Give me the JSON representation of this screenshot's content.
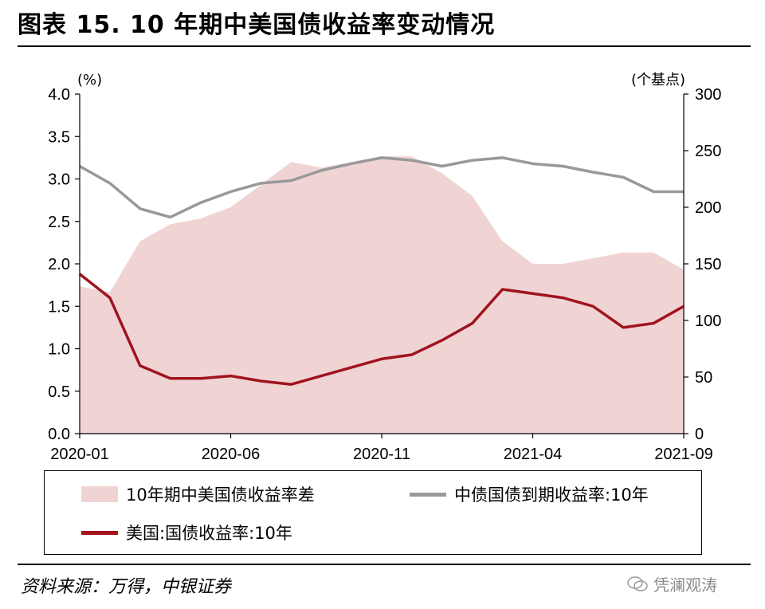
{
  "header": {
    "title": "图表 15. 10 年期中美国债收益率变动情况"
  },
  "footer": {
    "source": "资料来源：万得，中银证券",
    "watermark": "凭澜观涛"
  },
  "chart_data": {
    "type": "line",
    "left_axis": {
      "unit_label": "(%)",
      "range": [
        0,
        4.0
      ],
      "ticks": [
        "0.0",
        "0.5",
        "1.0",
        "1.5",
        "2.0",
        "2.5",
        "3.0",
        "3.5",
        "4.0"
      ]
    },
    "right_axis": {
      "unit_label": "(个基点)",
      "range": [
        0,
        300
      ],
      "ticks": [
        "0",
        "50",
        "100",
        "150",
        "200",
        "250",
        "300"
      ]
    },
    "x_ticks": [
      "2020-01",
      "2020-06",
      "2020-11",
      "2021-04",
      "2021-09"
    ],
    "x_dates": [
      "2020-01",
      "2020-02",
      "2020-03",
      "2020-04",
      "2020-05",
      "2020-06",
      "2020-07",
      "2020-08",
      "2020-09",
      "2020-10",
      "2020-11",
      "2020-12",
      "2021-01",
      "2021-02",
      "2021-03",
      "2021-04",
      "2021-05",
      "2021-06",
      "2021-07",
      "2021-08",
      "2021-09"
    ],
    "series": [
      {
        "name": "10年期中美国债收益率差",
        "axis": "right",
        "type": "area",
        "color": "#f0d4d4",
        "values": [
          130,
          125,
          170,
          185,
          190,
          200,
          220,
          240,
          235,
          240,
          245,
          245,
          230,
          210,
          170,
          150,
          150,
          155,
          160,
          160,
          145
        ]
      },
      {
        "name": "中债国债到期收益率:10年",
        "axis": "left",
        "type": "line",
        "color": "#999999",
        "values": [
          3.15,
          2.95,
          2.65,
          2.55,
          2.72,
          2.85,
          2.95,
          2.98,
          3.1,
          3.18,
          3.25,
          3.22,
          3.15,
          3.22,
          3.25,
          3.18,
          3.15,
          3.08,
          3.02,
          2.85,
          2.85
        ]
      },
      {
        "name": "美国:国债收益率:10年",
        "axis": "left",
        "type": "line",
        "color": "#a0141e",
        "values": [
          1.88,
          1.6,
          0.8,
          0.65,
          0.65,
          0.68,
          0.62,
          0.58,
          0.68,
          0.78,
          0.88,
          0.93,
          1.1,
          1.3,
          1.7,
          1.65,
          1.6,
          1.5,
          1.25,
          1.3,
          1.5
        ]
      }
    ]
  },
  "legend": {
    "spread": "10年期中美国债收益率差",
    "cn10y": "中债国债到期收益率:10年",
    "us10y": "美国:国债收益率:10年"
  }
}
